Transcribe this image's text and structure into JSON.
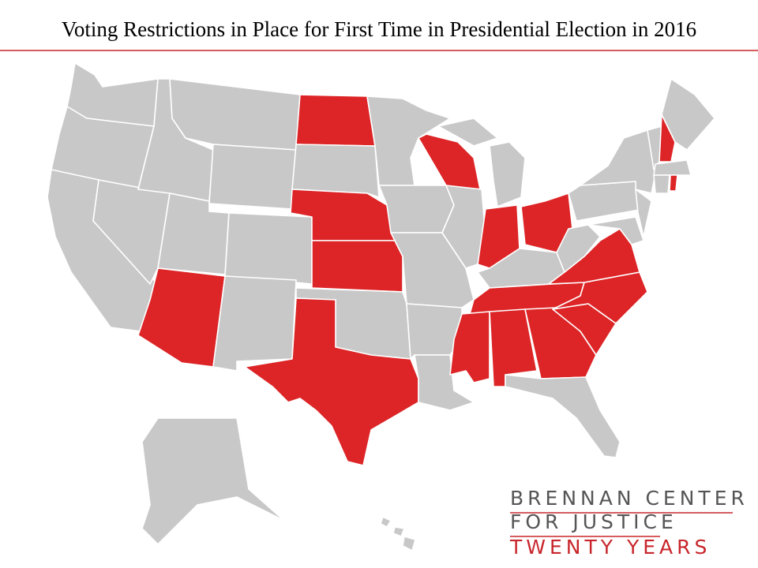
{
  "header": {
    "title": "Voting Restrictions in Place for First Time in Presidential Election in 2016"
  },
  "map": {
    "highlight_color": "#dd2426",
    "base_color": "#c8c8c8",
    "border_color": "#ffffff"
  },
  "logo": {
    "lines": [
      "BRENNAN CENTER",
      "FOR JUSTICE",
      "TWENTY YEARS"
    ],
    "accent_color": "#c8262b",
    "text_color": "#555555"
  }
}
